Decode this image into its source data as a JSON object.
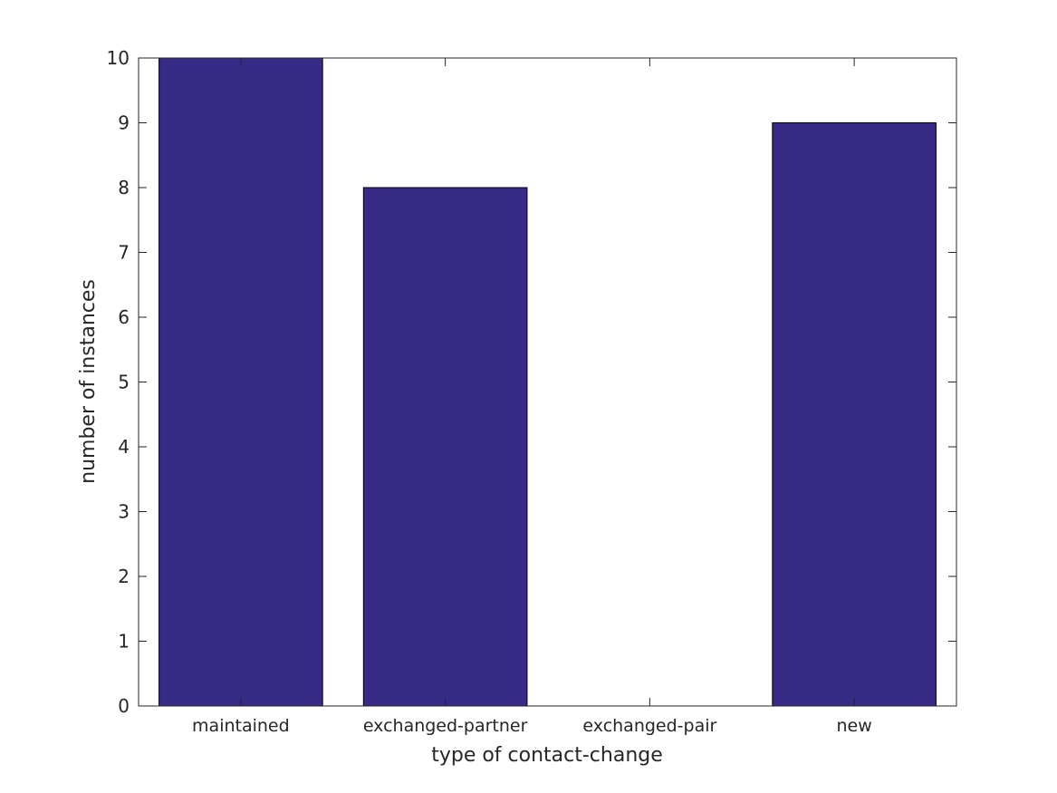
{
  "chart_data": {
    "type": "bar",
    "categories": [
      "maintained",
      "exchanged-partner",
      "exchanged-pair",
      "new"
    ],
    "values": [
      10,
      8,
      0,
      9
    ],
    "xlabel": "type of contact-change",
    "ylabel": "number of instances",
    "ylim": [
      0,
      10
    ],
    "yticks": [
      0,
      1,
      2,
      3,
      4,
      5,
      6,
      7,
      8,
      9,
      10
    ],
    "grid": false,
    "legend": "none",
    "colors": {
      "bar_fill": "#372b86",
      "bar_edge": "#000000",
      "axis": "#262626",
      "background": "#ffffff"
    }
  }
}
